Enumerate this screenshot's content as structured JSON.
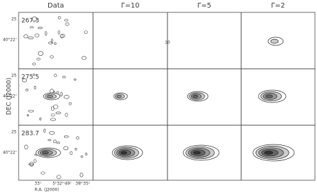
{
  "columns": [
    "Data",
    "Γ=10",
    "Γ=5",
    "Γ=2"
  ],
  "rows": [
    {
      "label": "267.3"
    },
    {
      "label": "275.5"
    },
    {
      "label": "283.7"
    }
  ],
  "y_axis": {
    "title": "DEC (J2000)",
    "ticks": [
      "25",
      "40°22'"
    ]
  },
  "x_axis": {
    "title": "R.A. (J2000)",
    "ticks": [
      "33ˢ",
      "5ʰ32ᵐ49ˢ",
      "38ᵐ35ˢ"
    ]
  },
  "annotation": "10"
}
